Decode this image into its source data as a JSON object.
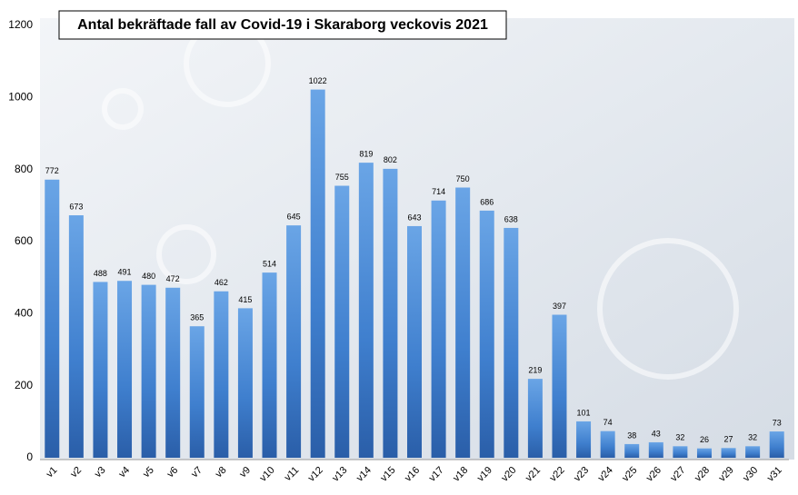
{
  "chart_data": {
    "type": "bar",
    "title": "Antal bekräftade fall av Covid-19 i Skaraborg veckovis 2021",
    "categories": [
      "v1",
      "v2",
      "v3",
      "v4",
      "v5",
      "v6",
      "v7",
      "v8",
      "v9",
      "v10",
      "v11",
      "v12",
      "v13",
      "v14",
      "v15",
      "v16",
      "v17",
      "v18",
      "v19",
      "v20",
      "v21",
      "v22",
      "v23",
      "v24",
      "v25",
      "v26",
      "v27",
      "v28",
      "v29",
      "v30",
      "v31"
    ],
    "values": [
      772,
      673,
      488,
      491,
      480,
      472,
      365,
      462,
      415,
      514,
      645,
      1022,
      755,
      819,
      802,
      643,
      714,
      750,
      686,
      638,
      219,
      397,
      101,
      74,
      38,
      43,
      32,
      26,
      27,
      32,
      73
    ],
    "color": "#3f7fce",
    "ylim": [
      0,
      1200
    ],
    "yticks": [
      0,
      200,
      400,
      600,
      800,
      1000,
      1200
    ],
    "grid": false
  }
}
